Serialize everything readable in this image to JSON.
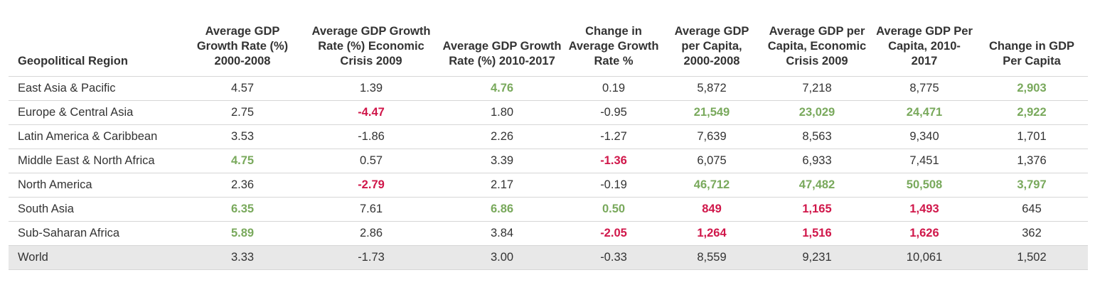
{
  "chart_data": {
    "type": "table",
    "columns": [
      "Geopolitical Region",
      "Average GDP Growth Rate (%) 2000-2008",
      "Average GDP Growth Rate (%) Economic Crisis 2009",
      "Average GDP Growth Rate (%) 2010-2017",
      "Change in Average Growth Rate %",
      "Average GDP per Capita, 2000-2008",
      "Average GDP per Capita, Economic Crisis 2009",
      "Average GDP Per Capita, 2010-2017",
      "Change in GDP Per Capita"
    ],
    "rows": [
      {
        "region": "East Asia & Pacific",
        "values": [
          "4.57",
          "1.39",
          "4.76",
          "0.19",
          "5,872",
          "7,218",
          "8,775",
          "2,903"
        ],
        "styles": [
          "",
          "",
          "hi",
          "",
          "",
          "",
          "",
          "hi"
        ]
      },
      {
        "region": "Europe & Central Asia",
        "values": [
          "2.75",
          "-4.47",
          "1.80",
          "-0.95",
          "21,549",
          "23,029",
          "24,471",
          "2,922"
        ],
        "styles": [
          "",
          "lo",
          "",
          "",
          "hi",
          "hi",
          "hi",
          "hi"
        ]
      },
      {
        "region": "Latin America & Caribbean",
        "values": [
          "3.53",
          "-1.86",
          "2.26",
          "-1.27",
          "7,639",
          "8,563",
          "9,340",
          "1,701"
        ],
        "styles": [
          "",
          "",
          "",
          "",
          "",
          "",
          "",
          ""
        ]
      },
      {
        "region": "Middle East & North Africa",
        "values": [
          "4.75",
          "0.57",
          "3.39",
          "-1.36",
          "6,075",
          "6,933",
          "7,451",
          "1,376"
        ],
        "styles": [
          "hi",
          "",
          "",
          "lo",
          "",
          "",
          "",
          ""
        ]
      },
      {
        "region": "North America",
        "values": [
          "2.36",
          "-2.79",
          "2.17",
          "-0.19",
          "46,712",
          "47,482",
          "50,508",
          "3,797"
        ],
        "styles": [
          "",
          "lo",
          "",
          "",
          "hi",
          "hi",
          "hi",
          "hi"
        ]
      },
      {
        "region": "South Asia",
        "values": [
          "6.35",
          "7.61",
          "6.86",
          "0.50",
          "849",
          "1,165",
          "1,493",
          "645"
        ],
        "styles": [
          "hi",
          "",
          "hi",
          "hi",
          "lo",
          "lo",
          "lo",
          ""
        ]
      },
      {
        "region": "Sub-Saharan Africa",
        "values": [
          "5.89",
          "2.86",
          "3.84",
          "-2.05",
          "1,264",
          "1,516",
          "1,626",
          "362"
        ],
        "styles": [
          "hi",
          "",
          "",
          "lo",
          "lo",
          "lo",
          "lo",
          ""
        ]
      },
      {
        "region": "World",
        "values": [
          "3.33",
          "-1.73",
          "3.00",
          "-0.33",
          "8,559",
          "9,231",
          "10,061",
          "1,502"
        ],
        "styles": [
          "",
          "",
          "",
          "",
          "",
          "",
          "",
          ""
        ],
        "summary": true
      }
    ]
  },
  "colors": {
    "highlight_high": "#79a95c",
    "highlight_low": "#d0174a",
    "summary_row_bg": "#e8e8e8"
  }
}
